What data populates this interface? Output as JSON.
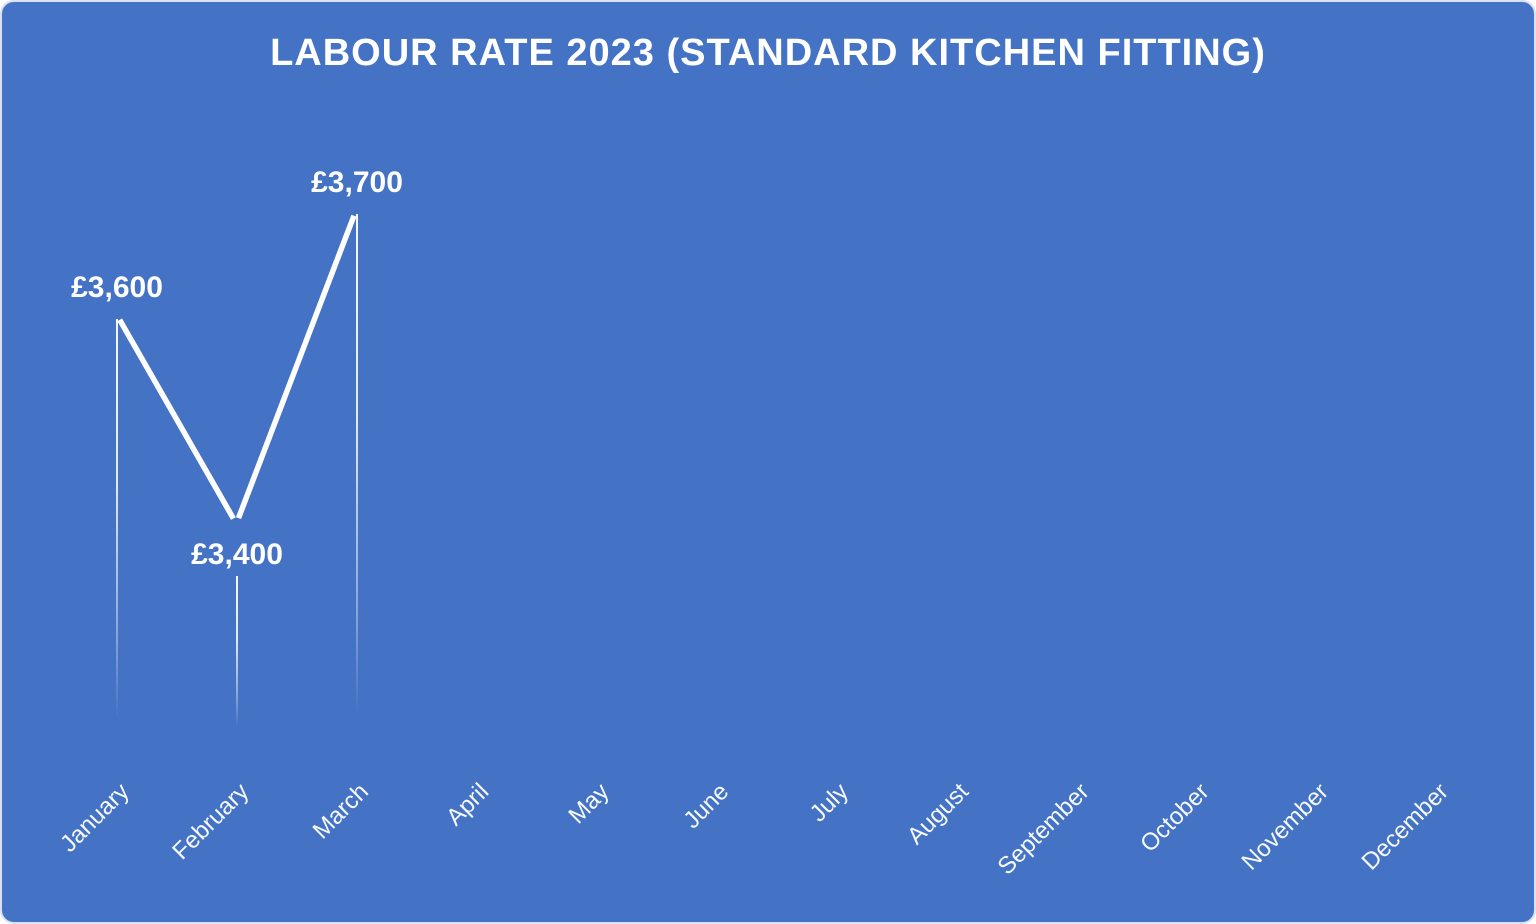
{
  "chart_data": {
    "type": "line",
    "title": "LABOUR RATE 2023 (STANDARD KITCHEN FITTING)",
    "categories": [
      "January",
      "February",
      "March",
      "April",
      "May",
      "June",
      "July",
      "August",
      "September",
      "October",
      "November",
      "December"
    ],
    "values": [
      3600,
      3400,
      3700,
      null,
      null,
      null,
      null,
      null,
      null,
      null,
      null,
      null
    ],
    "data_labels": [
      {
        "index": 0,
        "text": "£3,600",
        "position": "above"
      },
      {
        "index": 1,
        "text": "£3,400",
        "position": "below"
      },
      {
        "index": 2,
        "text": "£3,700",
        "position": "above"
      }
    ],
    "xlabel": "",
    "ylabel": "",
    "legend": false,
    "grid": false,
    "x_label_rotation_deg": 45,
    "styles": {
      "background_color": "#4472C4",
      "line_color": "#FFFFFF",
      "title_color": "#FFFFFF",
      "data_label_color": "#FFFFFF",
      "axis_label_color": "#FFFFFF",
      "drop_lines": true,
      "border_color": "#D9E1F2"
    }
  }
}
